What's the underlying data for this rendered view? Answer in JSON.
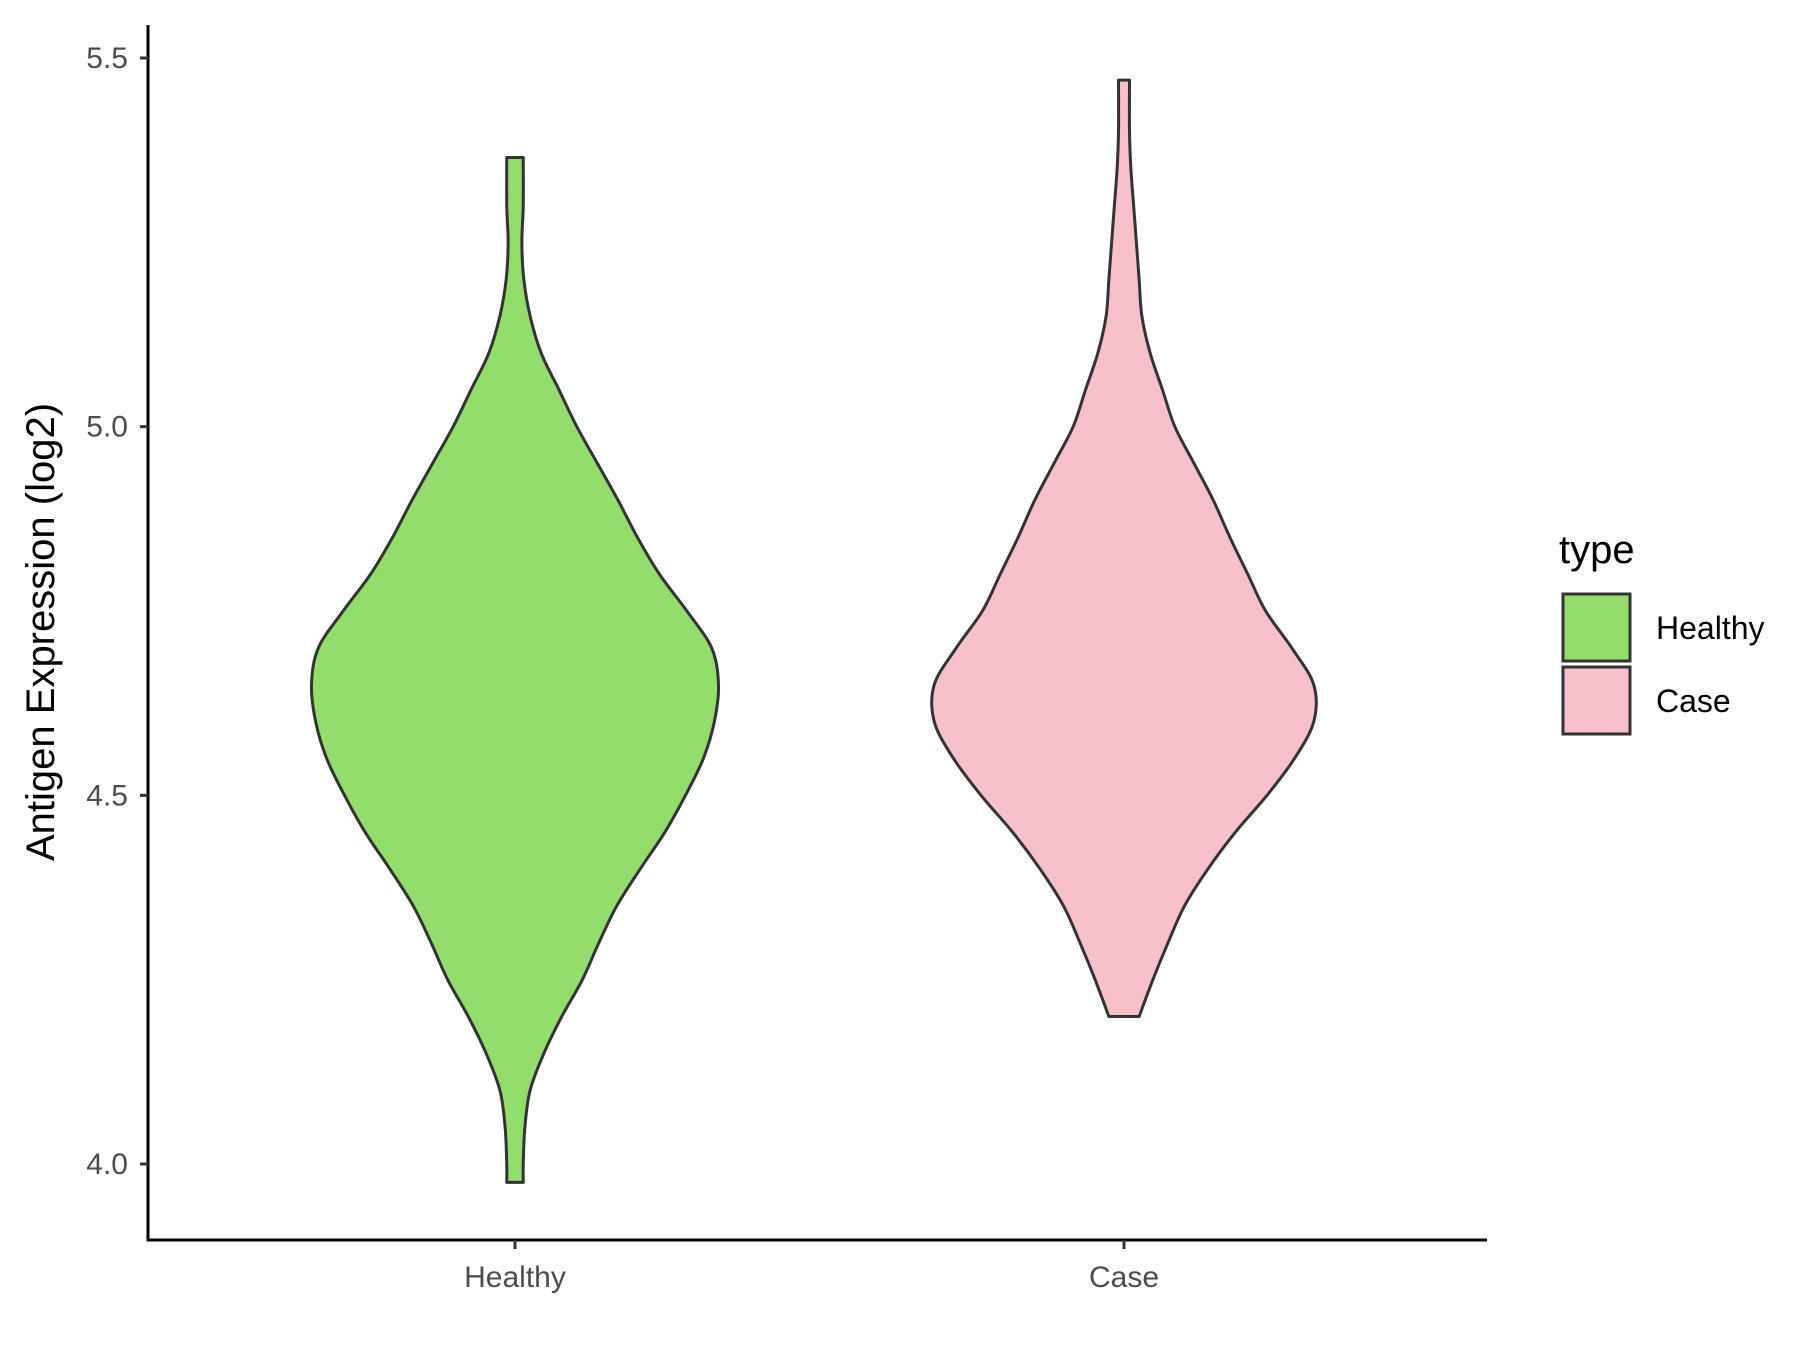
{
  "chart_data": {
    "type": "violin",
    "xlabel": "",
    "ylabel": "Antigen Expression (log2)",
    "ylim": [
      3.92,
      5.55
    ],
    "yticks": [
      "4.0",
      "4.5",
      "5.0",
      "5.5"
    ],
    "categories": [
      "Healthy",
      "Case"
    ],
    "grid": false,
    "legend": {
      "title": "type",
      "placement": "right",
      "entries": [
        "Healthy",
        "Case"
      ]
    },
    "outline_color": "#333333",
    "series": [
      {
        "name": "Healthy",
        "color": "#93DD6C",
        "min": 3.975,
        "max": 5.365,
        "profile": [
          [
            3.975,
            0.03
          ],
          [
            4.0,
            0.03
          ],
          [
            4.05,
            0.036
          ],
          [
            4.1,
            0.055
          ],
          [
            4.15,
            0.105
          ],
          [
            4.2,
            0.17
          ],
          [
            4.25,
            0.245
          ],
          [
            4.3,
            0.305
          ],
          [
            4.35,
            0.37
          ],
          [
            4.4,
            0.455
          ],
          [
            4.45,
            0.545
          ],
          [
            4.5,
            0.62
          ],
          [
            4.55,
            0.685
          ],
          [
            4.6,
            0.725
          ],
          [
            4.65,
            0.74
          ],
          [
            4.7,
            0.715
          ],
          [
            4.75,
            0.625
          ],
          [
            4.8,
            0.525
          ],
          [
            4.85,
            0.445
          ],
          [
            4.9,
            0.375
          ],
          [
            4.95,
            0.3
          ],
          [
            5.0,
            0.225
          ],
          [
            5.05,
            0.16
          ],
          [
            5.1,
            0.095
          ],
          [
            5.15,
            0.055
          ],
          [
            5.2,
            0.032
          ],
          [
            5.25,
            0.025
          ],
          [
            5.3,
            0.03
          ],
          [
            5.365,
            0.03
          ]
        ]
      },
      {
        "name": "Case",
        "color": "#F8C0CB",
        "min": 4.2,
        "max": 5.47,
        "profile": [
          [
            4.2,
            0.055
          ],
          [
            4.25,
            0.105
          ],
          [
            4.3,
            0.16
          ],
          [
            4.35,
            0.22
          ],
          [
            4.4,
            0.305
          ],
          [
            4.45,
            0.405
          ],
          [
            4.5,
            0.52
          ],
          [
            4.55,
            0.62
          ],
          [
            4.6,
            0.69
          ],
          [
            4.65,
            0.69
          ],
          [
            4.7,
            0.61
          ],
          [
            4.75,
            0.515
          ],
          [
            4.8,
            0.45
          ],
          [
            4.85,
            0.385
          ],
          [
            4.9,
            0.325
          ],
          [
            4.95,
            0.255
          ],
          [
            5.0,
            0.185
          ],
          [
            5.05,
            0.14
          ],
          [
            5.1,
            0.095
          ],
          [
            5.15,
            0.065
          ],
          [
            5.2,
            0.055
          ],
          [
            5.25,
            0.045
          ],
          [
            5.3,
            0.035
          ],
          [
            5.35,
            0.025
          ],
          [
            5.4,
            0.02
          ],
          [
            5.47,
            0.02
          ]
        ]
      }
    ]
  }
}
